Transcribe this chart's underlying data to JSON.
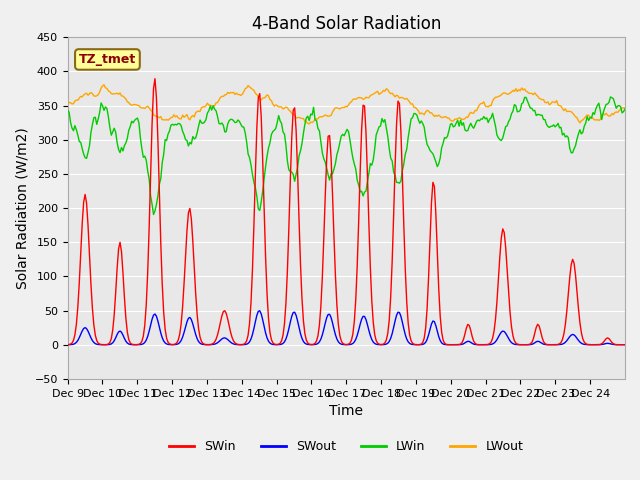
{
  "title": "4-Band Solar Radiation",
  "xlabel": "Time",
  "ylabel": "Solar Radiation (W/m2)",
  "ylim": [
    -50,
    450
  ],
  "xlim": [
    0,
    384
  ],
  "xtick_labels": [
    "Dec 9",
    "Dec 10",
    "Dec 11",
    "Dec 12",
    "Dec 13",
    "Dec 14",
    "Dec 15",
    "Dec 16",
    "Dec 17",
    "Dec 18",
    "Dec 19",
    "Dec 20",
    "Dec 21",
    "Dec 22",
    "Dec 23",
    "Dec 24"
  ],
  "xtick_positions": [
    0,
    24,
    48,
    72,
    96,
    120,
    144,
    168,
    192,
    216,
    240,
    264,
    288,
    312,
    336,
    360
  ],
  "annotation_text": "TZ_tmet",
  "annotation_color": "#8B0000",
  "annotation_bg": "#FFFF99",
  "colors": {
    "SWin": "#FF0000",
    "SWout": "#0000FF",
    "LWin": "#00CC00",
    "LWout": "#FFA500"
  },
  "legend_labels": [
    "SWin",
    "SWout",
    "LWin",
    "LWout"
  ],
  "bg_color": "#E8E8E8",
  "grid_color": "#FFFFFF",
  "title_fontsize": 12,
  "axis_fontsize": 10,
  "tick_fontsize": 8
}
